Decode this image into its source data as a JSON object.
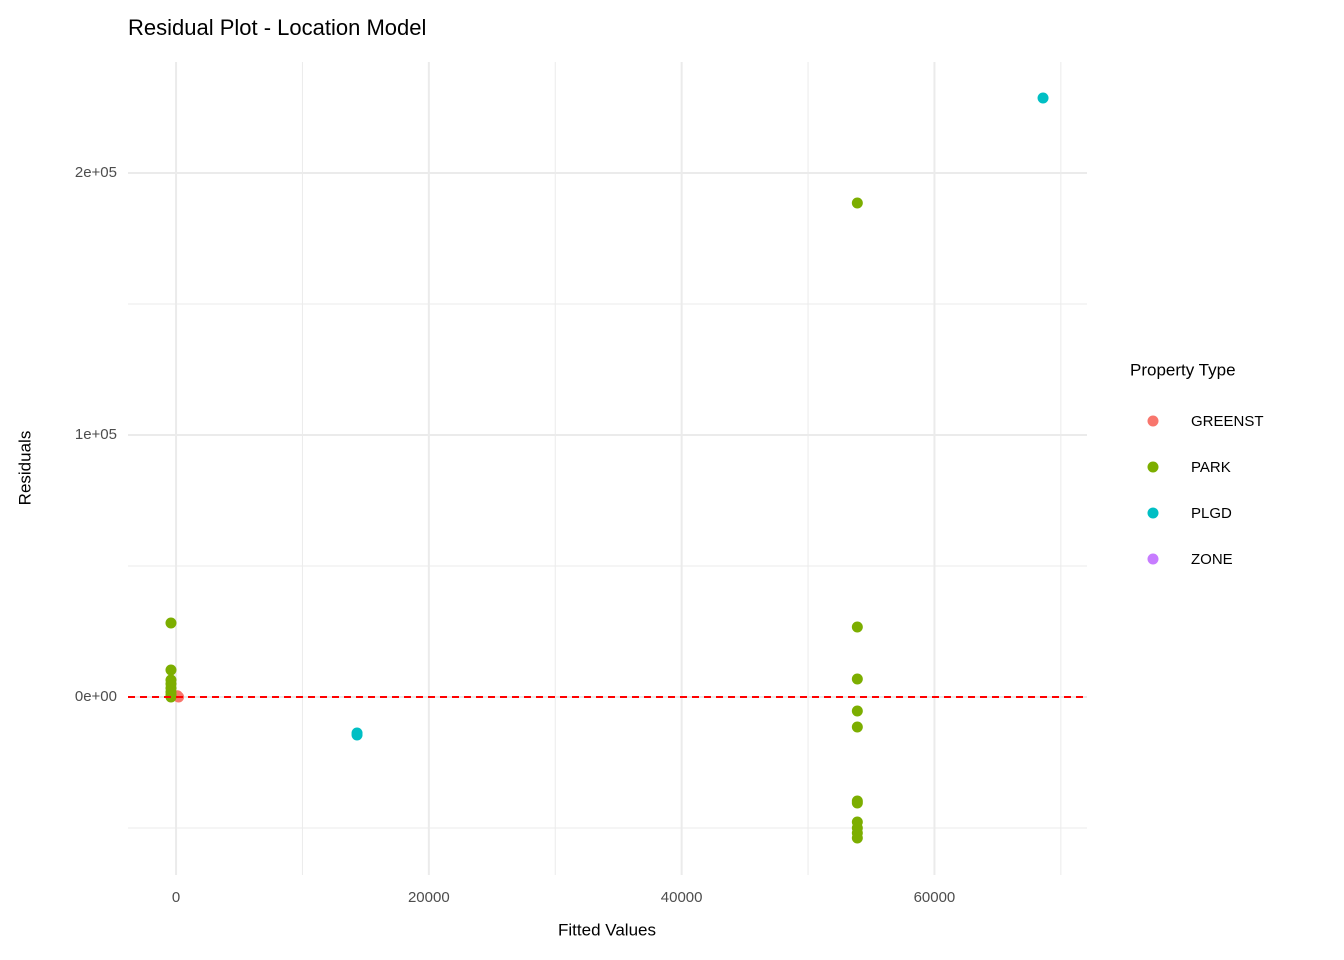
{
  "chart_data": {
    "type": "scatter",
    "title": "Residual Plot - Location Model",
    "x_label": "Fitted Values",
    "y_label": "Residuals",
    "legend_title": "Property Type",
    "legend_position": "right",
    "xlim": [
      -3800,
      72070
    ],
    "ylim": [
      -67939,
      242366
    ],
    "xticks": [
      0,
      20000,
      40000,
      60000
    ],
    "yticks": [
      {
        "value": 0,
        "label": "0e+00"
      },
      {
        "value": 100000,
        "label": "1e+05"
      },
      {
        "value": 200000,
        "label": "2e+05"
      }
    ],
    "xminor": [
      10000,
      30000,
      50000,
      70000
    ],
    "yminor": [
      -50000,
      50000,
      150000
    ],
    "grid": true,
    "hline": {
      "value": 0,
      "color": "#ff0000",
      "dashed": true
    },
    "series": [
      {
        "name": "GREENST",
        "color": "#F8766D",
        "x": [
          200,
          100
        ],
        "y": [
          0,
          500
        ]
      },
      {
        "name": "PARK",
        "color": "#7CAE00",
        "x": [
          -400,
          -400,
          -400,
          -400,
          -400,
          -400,
          -400,
          -400,
          53900,
          53900,
          53900,
          53900,
          53900,
          53900,
          53900,
          53900,
          53900,
          53900,
          53900
        ],
        "y": [
          28244,
          10300,
          6500,
          5000,
          3400,
          1900,
          760,
          0,
          188550,
          26700,
          6870,
          -5340,
          -11450,
          -39700,
          -40460,
          -47700,
          -50000,
          -51900,
          -53800
        ]
      },
      {
        "name": "PLGD",
        "color": "#00BFC4",
        "x": [
          14320,
          14320,
          68592
        ],
        "y": [
          -14500,
          -13740,
          228626
        ]
      },
      {
        "name": "ZONE",
        "color": "#C77CFF",
        "x": [],
        "y": []
      }
    ]
  }
}
